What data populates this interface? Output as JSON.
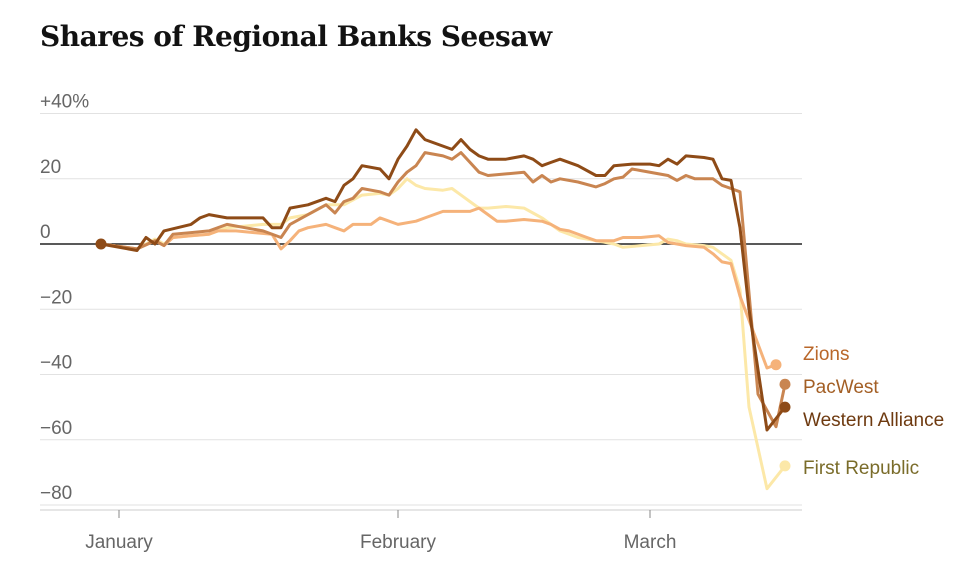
{
  "chart_data": {
    "type": "line",
    "title": "Shares of Regional Banks Seesaw",
    "y_ticks": [
      {
        "value": 40,
        "label": "+40%"
      },
      {
        "value": 20,
        "label": "20"
      },
      {
        "value": 0,
        "label": "0"
      },
      {
        "value": -20,
        "label": "−20"
      },
      {
        "value": -40,
        "label": "−40"
      },
      {
        "value": -60,
        "label": "−60"
      },
      {
        "value": -80,
        "label": "−80"
      }
    ],
    "x_ticks": [
      {
        "label": "January",
        "x": 1
      },
      {
        "label": "February",
        "x": 32
      },
      {
        "label": "March",
        "x": 60
      }
    ],
    "ylim": [
      -82,
      43
    ],
    "xlim": [
      -1,
      74
    ],
    "grid": true,
    "series": [
      {
        "name": "Zions",
        "color": "#f5b27a",
        "label_color": "#b9672a",
        "points": [
          [
            -1,
            0
          ],
          [
            3,
            -1.5
          ],
          [
            5,
            1
          ],
          [
            6,
            -0.5
          ],
          [
            7,
            2
          ],
          [
            9,
            2.5
          ],
          [
            11,
            3
          ],
          [
            12,
            4
          ],
          [
            14,
            4
          ],
          [
            16,
            3.5
          ],
          [
            18,
            3
          ],
          [
            19,
            -1.5
          ],
          [
            20,
            1
          ],
          [
            21,
            4
          ],
          [
            22,
            5
          ],
          [
            24,
            6
          ],
          [
            25,
            5
          ],
          [
            26,
            4
          ],
          [
            27,
            6
          ],
          [
            29,
            6
          ],
          [
            30,
            8
          ],
          [
            32,
            6
          ],
          [
            34,
            7
          ],
          [
            35,
            8
          ],
          [
            37,
            10
          ],
          [
            38,
            10
          ],
          [
            40,
            10
          ],
          [
            41,
            11
          ],
          [
            42,
            9
          ],
          [
            43,
            7
          ],
          [
            44,
            7
          ],
          [
            46,
            7.5
          ],
          [
            48,
            7
          ],
          [
            49,
            6
          ],
          [
            50,
            4.5
          ],
          [
            51,
            4
          ],
          [
            53,
            2
          ],
          [
            54,
            1
          ],
          [
            56,
            1
          ],
          [
            57,
            2
          ],
          [
            59,
            2
          ],
          [
            61,
            2.5
          ],
          [
            62,
            0.5
          ],
          [
            63,
            0
          ],
          [
            64,
            -0.5
          ],
          [
            66,
            -1
          ],
          [
            67,
            -3
          ],
          [
            68,
            -5.5
          ],
          [
            69,
            -6
          ],
          [
            70,
            -16
          ],
          [
            73,
            -38
          ],
          [
            74,
            -37
          ]
        ]
      },
      {
        "name": "PacWest",
        "color": "#c98551",
        "label_color": "#a35f25",
        "points": [
          [
            -1,
            0
          ],
          [
            3,
            -1.5
          ],
          [
            5,
            1
          ],
          [
            6,
            -0.5
          ],
          [
            7,
            3
          ],
          [
            9,
            3.5
          ],
          [
            11,
            4
          ],
          [
            12,
            5
          ],
          [
            13,
            6
          ],
          [
            15,
            5
          ],
          [
            17,
            4
          ],
          [
            19,
            2
          ],
          [
            20,
            6
          ],
          [
            22,
            9
          ],
          [
            23,
            10.5
          ],
          [
            24,
            12
          ],
          [
            25,
            9.5
          ],
          [
            26,
            13
          ],
          [
            27,
            14
          ],
          [
            28,
            17
          ],
          [
            30,
            16
          ],
          [
            31,
            15
          ],
          [
            32,
            19
          ],
          [
            33,
            22
          ],
          [
            34,
            24
          ],
          [
            35,
            28
          ],
          [
            37,
            27
          ],
          [
            38,
            26
          ],
          [
            39,
            28
          ],
          [
            40,
            25
          ],
          [
            41,
            22
          ],
          [
            42,
            21
          ],
          [
            44,
            21.5
          ],
          [
            46,
            22
          ],
          [
            47,
            19
          ],
          [
            48,
            21
          ],
          [
            49,
            19
          ],
          [
            50,
            20
          ],
          [
            52,
            19
          ],
          [
            54,
            17.5
          ],
          [
            55,
            18.5
          ],
          [
            56,
            20
          ],
          [
            57,
            20.5
          ],
          [
            58,
            23
          ],
          [
            59,
            22.5
          ],
          [
            61,
            21.5
          ],
          [
            62,
            21
          ],
          [
            63,
            19.5
          ],
          [
            64,
            21
          ],
          [
            65,
            20
          ],
          [
            67,
            20
          ],
          [
            68,
            18
          ],
          [
            69,
            17
          ],
          [
            70,
            16
          ],
          [
            72,
            -46
          ],
          [
            74,
            -56
          ],
          [
            75,
            -43
          ]
        ]
      },
      {
        "name": "Western Alliance",
        "color": "#8e4b17",
        "label_color": "#6e3a10",
        "points": [
          [
            -1,
            0
          ],
          [
            3,
            -2
          ],
          [
            4,
            2
          ],
          [
            5,
            0
          ],
          [
            6,
            4
          ],
          [
            9,
            6
          ],
          [
            10,
            8
          ],
          [
            11,
            9
          ],
          [
            13,
            8
          ],
          [
            17,
            8
          ],
          [
            18,
            5
          ],
          [
            19,
            5
          ],
          [
            20,
            11
          ],
          [
            22,
            12
          ],
          [
            24,
            14
          ],
          [
            25,
            13
          ],
          [
            26,
            18
          ],
          [
            27,
            20
          ],
          [
            28,
            24
          ],
          [
            30,
            23
          ],
          [
            31,
            20
          ],
          [
            32,
            26
          ],
          [
            33,
            30
          ],
          [
            34,
            35
          ],
          [
            35,
            32
          ],
          [
            37,
            30
          ],
          [
            38,
            29
          ],
          [
            39,
            32
          ],
          [
            40,
            29
          ],
          [
            41,
            27
          ],
          [
            42,
            26
          ],
          [
            44,
            26
          ],
          [
            46,
            27
          ],
          [
            47,
            26
          ],
          [
            48,
            24
          ],
          [
            49,
            25
          ],
          [
            50,
            26
          ],
          [
            52,
            24
          ],
          [
            54,
            21
          ],
          [
            55,
            21
          ],
          [
            56,
            24
          ],
          [
            58,
            24.5
          ],
          [
            60,
            24.5
          ],
          [
            61,
            24
          ],
          [
            62,
            26
          ],
          [
            63,
            24.5
          ],
          [
            64,
            27
          ],
          [
            66,
            26.5
          ],
          [
            67,
            26
          ],
          [
            68,
            20
          ],
          [
            69,
            19.5
          ],
          [
            70,
            5
          ],
          [
            71,
            -20
          ],
          [
            73,
            -57
          ],
          [
            75,
            -50
          ]
        ]
      },
      {
        "name": "First Republic",
        "color": "#fce8a8",
        "label_color": "#7a6c2a",
        "points": [
          [
            -1,
            0
          ],
          [
            3,
            -1.5
          ],
          [
            5,
            1.5
          ],
          [
            6,
            0
          ],
          [
            7,
            2
          ],
          [
            9,
            2.5
          ],
          [
            11,
            3
          ],
          [
            13,
            5
          ],
          [
            15,
            5.5
          ],
          [
            17,
            6
          ],
          [
            19,
            6
          ],
          [
            20,
            8
          ],
          [
            22,
            9
          ],
          [
            24,
            12
          ],
          [
            26,
            12
          ],
          [
            28,
            15
          ],
          [
            30,
            15.5
          ],
          [
            31,
            15
          ],
          [
            32,
            17
          ],
          [
            33,
            20
          ],
          [
            34,
            18
          ],
          [
            35,
            17
          ],
          [
            37,
            16.5
          ],
          [
            38,
            17
          ],
          [
            39,
            15
          ],
          [
            40,
            13
          ],
          [
            41,
            11
          ],
          [
            42,
            11
          ],
          [
            44,
            11.5
          ],
          [
            46,
            11
          ],
          [
            47,
            9.5
          ],
          [
            48,
            8
          ],
          [
            49,
            6
          ],
          [
            50,
            4
          ],
          [
            52,
            2
          ],
          [
            54,
            1
          ],
          [
            56,
            0
          ],
          [
            57,
            -1
          ],
          [
            59,
            -0.5
          ],
          [
            61,
            0
          ],
          [
            62,
            1.5
          ],
          [
            63,
            1
          ],
          [
            64,
            0
          ],
          [
            66,
            -0.5
          ],
          [
            67,
            -1
          ],
          [
            68,
            -3
          ],
          [
            69,
            -5
          ],
          [
            70,
            -14
          ],
          [
            71,
            -50
          ],
          [
            73,
            -75
          ],
          [
            75,
            -68
          ]
        ]
      }
    ]
  }
}
